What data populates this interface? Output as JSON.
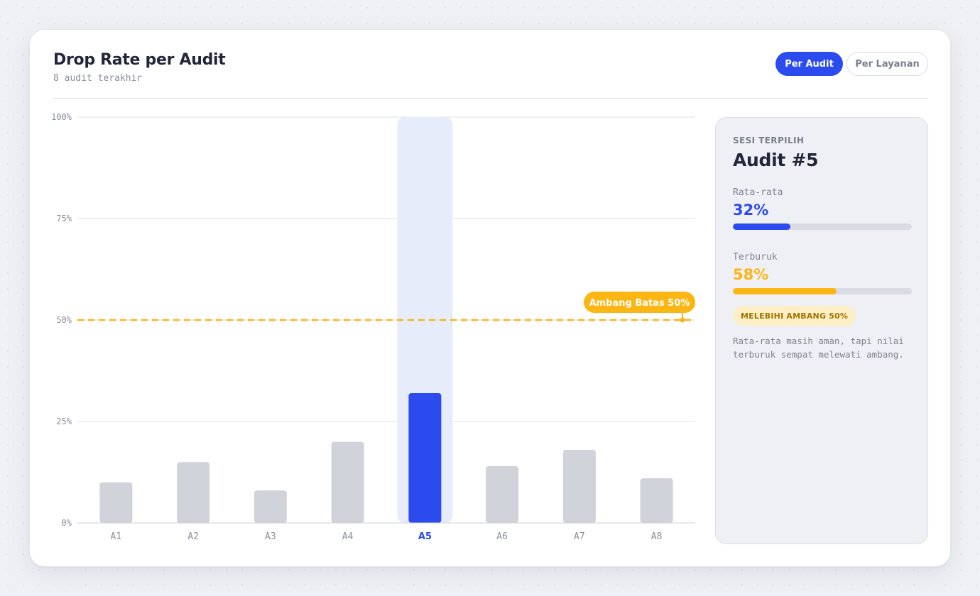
{
  "header": {
    "title": "Drop Rate per Audit",
    "subtitle": "8 audit terakhir"
  },
  "toggles": {
    "per_audit": "Per Audit",
    "per_layanan": "Per Layanan",
    "active": "per_audit"
  },
  "colors": {
    "accent": "#2b4bee",
    "warning": "#fbb614",
    "bar_default": "#d0d3da",
    "highlight_bg": "#e7ecfb"
  },
  "chart_data": {
    "type": "bar",
    "categories": [
      "A1",
      "A2",
      "A3",
      "A4",
      "A5",
      "A6",
      "A7",
      "A8"
    ],
    "values": [
      10,
      15,
      8,
      20,
      32,
      14,
      18,
      11
    ],
    "selected_index": 4,
    "ylim": [
      0,
      100
    ],
    "yticks": [
      0,
      25,
      50,
      75,
      100
    ],
    "ytick_labels": [
      "0%",
      "25%",
      "50%",
      "75%",
      "100%"
    ],
    "grid": true,
    "threshold": {
      "value": 50,
      "label": "Ambang Batas 50%"
    }
  },
  "panel": {
    "kicker": "SESI TERPILIH",
    "title": "Audit #5",
    "average_label": "Rata-rata",
    "average_value": "32%",
    "average_fraction": 0.32,
    "worst_label": "Terburuk",
    "worst_value": "58%",
    "worst_fraction": 0.58,
    "badge": "MELEBIHI AMBANG 50%",
    "note": "Rata-rata masih aman, tapi nilai terburuk sempat melewati ambang."
  }
}
